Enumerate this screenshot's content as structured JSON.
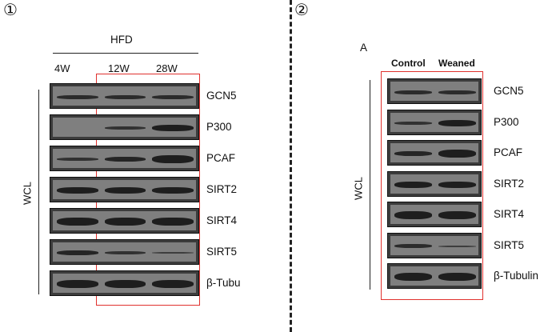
{
  "panel1": {
    "marker": "①",
    "group_label": "HFD",
    "columns": [
      "4W",
      "12W",
      "28W"
    ],
    "side_label": "WCL",
    "rows": [
      "GCN5",
      "P300",
      "PCAF",
      "SIRT2",
      "SIRT4",
      "SIRT5",
      "β-Tubu"
    ],
    "highlight_color": "#e0312e"
  },
  "panel2": {
    "marker": "②",
    "corner_label": "A",
    "columns": [
      "Control",
      "Weaned"
    ],
    "side_label": "WCL",
    "rows": [
      "GCN5",
      "P300",
      "PCAF",
      "SIRT2",
      "SIRT4",
      "SIRT5",
      "β-Tubulin"
    ],
    "highlight_color": "#e0312e"
  }
}
